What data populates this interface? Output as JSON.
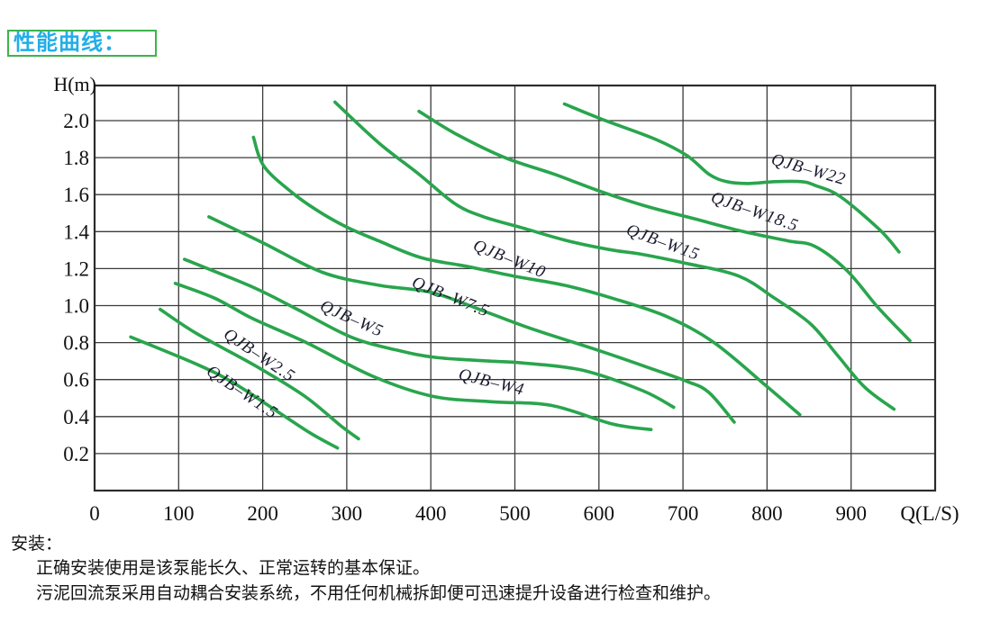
{
  "page": {
    "title": "性能曲线：",
    "installation": {
      "heading": "安装：",
      "lines": [
        "正确安装使用是该泵能长久、正常运转的基本保证。",
        "污泥回流泵采用自动耦合安装系统，不用任何机械拆卸便可迅速提升设备进行检查和维护。"
      ]
    }
  },
  "colors": {
    "title_text": "#22aee8",
    "title_border": "#3cb44a",
    "curve": "#29a54d",
    "grid": "#3a3a3a",
    "border": "#2b2b2b",
    "axis_text": "#111111",
    "label_text": "#1b1b30"
  },
  "chart_data": {
    "type": "line",
    "title": "性能曲线",
    "xlabel": "Q(L/S)",
    "ylabel": "H(m)",
    "xlim": [
      0,
      1000
    ],
    "ylim": [
      0,
      2.19
    ],
    "grid": true,
    "legend_position": "inline-curve-labels",
    "x_ticks": [
      0,
      100,
      200,
      300,
      400,
      500,
      600,
      700,
      800,
      900
    ],
    "y_ticks": [
      0.2,
      0.4,
      0.6,
      0.8,
      1.0,
      1.2,
      1.4,
      1.6,
      1.8,
      2.0
    ],
    "series": [
      {
        "name": "QJB-W1.5",
        "points": [
          [
            43,
            0.83
          ],
          [
            123,
            0.68
          ],
          [
            166,
            0.58
          ],
          [
            220,
            0.42
          ],
          [
            257,
            0.31
          ],
          [
            289,
            0.23
          ]
        ]
      },
      {
        "name": "QJB-W2.5",
        "points": [
          [
            78,
            0.98
          ],
          [
            121,
            0.85
          ],
          [
            193,
            0.67
          ],
          [
            250,
            0.51
          ],
          [
            293,
            0.35
          ],
          [
            314,
            0.28
          ]
        ]
      },
      {
        "name": "QJB-W4",
        "points": [
          [
            96,
            1.12
          ],
          [
            143,
            1.04
          ],
          [
            188,
            0.93
          ],
          [
            252,
            0.8
          ],
          [
            330,
            0.62
          ],
          [
            402,
            0.51
          ],
          [
            474,
            0.48
          ],
          [
            544,
            0.46
          ],
          [
            616,
            0.36
          ],
          [
            662,
            0.33
          ]
        ]
      },
      {
        "name": "QJB-W5",
        "points": [
          [
            107,
            1.25
          ],
          [
            188,
            1.1
          ],
          [
            241,
            0.98
          ],
          [
            305,
            0.83
          ],
          [
            359,
            0.76
          ],
          [
            405,
            0.72
          ],
          [
            469,
            0.7
          ],
          [
            509,
            0.69
          ],
          [
            581,
            0.65
          ],
          [
            652,
            0.54
          ],
          [
            689,
            0.45
          ]
        ]
      },
      {
        "name": "QJB-W7.5",
        "points": [
          [
            136,
            1.48
          ],
          [
            200,
            1.34
          ],
          [
            271,
            1.18
          ],
          [
            338,
            1.11
          ],
          [
            402,
            1.07
          ],
          [
            469,
            0.96
          ],
          [
            523,
            0.87
          ],
          [
            598,
            0.76
          ],
          [
            662,
            0.66
          ],
          [
            705,
            0.59
          ],
          [
            731,
            0.53
          ],
          [
            761,
            0.37
          ]
        ]
      },
      {
        "name": "QJB-W10",
        "points": [
          [
            189,
            1.91
          ],
          [
            202,
            1.75
          ],
          [
            238,
            1.6
          ],
          [
            270,
            1.5
          ],
          [
            302,
            1.42
          ],
          [
            338,
            1.35
          ],
          [
            388,
            1.26
          ],
          [
            445,
            1.21
          ],
          [
            498,
            1.16
          ],
          [
            559,
            1.11
          ],
          [
            616,
            1.04
          ],
          [
            681,
            0.94
          ],
          [
            737,
            0.8
          ],
          [
            798,
            0.57
          ],
          [
            839,
            0.41
          ]
        ]
      },
      {
        "name": "QJB-W15",
        "points": [
          [
            286,
            2.1
          ],
          [
            338,
            1.88
          ],
          [
            386,
            1.71
          ],
          [
            429,
            1.55
          ],
          [
            463,
            1.48
          ],
          [
            509,
            1.42
          ],
          [
            563,
            1.35
          ],
          [
            616,
            1.3
          ],
          [
            648,
            1.28
          ],
          [
            702,
            1.23
          ],
          [
            766,
            1.16
          ],
          [
            809,
            1.04
          ],
          [
            852,
            0.9
          ],
          [
            884,
            0.73
          ],
          [
            916,
            0.56
          ],
          [
            951,
            0.44
          ]
        ]
      },
      {
        "name": "QJB-W18.5",
        "points": [
          [
            386,
            2.05
          ],
          [
            429,
            1.93
          ],
          [
            488,
            1.8
          ],
          [
            547,
            1.71
          ],
          [
            600,
            1.62
          ],
          [
            654,
            1.54
          ],
          [
            713,
            1.47
          ],
          [
            772,
            1.4
          ],
          [
            825,
            1.35
          ],
          [
            857,
            1.32
          ],
          [
            895,
            1.19
          ],
          [
            932,
            0.99
          ],
          [
            970,
            0.81
          ]
        ]
      },
      {
        "name": "QJB-W22",
        "points": [
          [
            559,
            2.09
          ],
          [
            602,
            2.01
          ],
          [
            667,
            1.9
          ],
          [
            705,
            1.81
          ],
          [
            731,
            1.71
          ],
          [
            752,
            1.67
          ],
          [
            777,
            1.66
          ],
          [
            809,
            1.67
          ],
          [
            841,
            1.67
          ],
          [
            857,
            1.65
          ],
          [
            887,
            1.59
          ],
          [
            934,
            1.41
          ],
          [
            957,
            1.29
          ]
        ]
      }
    ]
  }
}
